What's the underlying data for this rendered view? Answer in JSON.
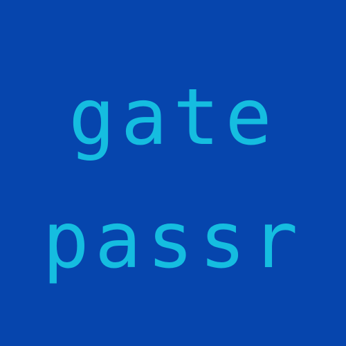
{
  "background_color": "#0645ad",
  "text_color": "#15bde0",
  "lines": [
    "gate",
    "passr"
  ]
}
